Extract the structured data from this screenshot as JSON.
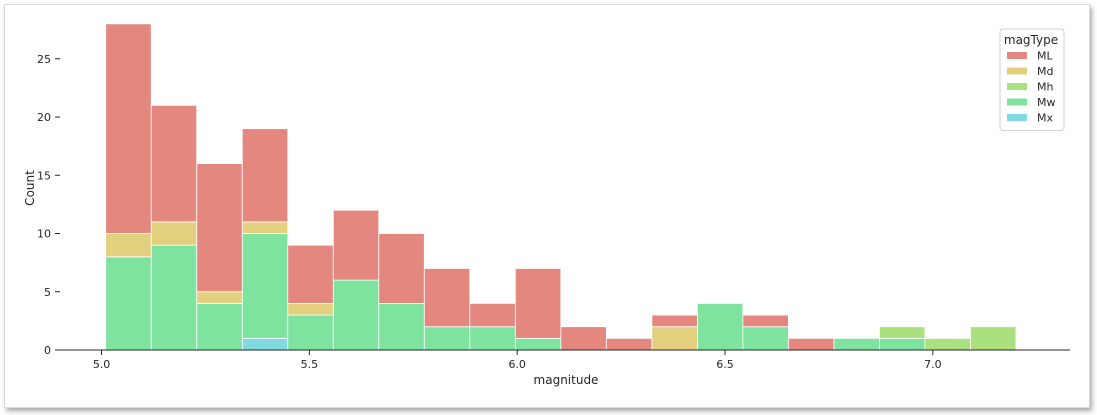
{
  "chart_data": {
    "type": "bar",
    "stacked": true,
    "xlabel": "magnitude",
    "ylabel": "Count",
    "xlim": [
      4.9,
      7.33
    ],
    "ylim": [
      0,
      28.5
    ],
    "xticks": [
      5.0,
      5.5,
      6.0,
      6.5,
      7.0
    ],
    "xtick_labels": [
      "5.0",
      "5.5",
      "6.0",
      "6.5",
      "7.0"
    ],
    "yticks": [
      0,
      5,
      10,
      15,
      20,
      25
    ],
    "ytick_labels": [
      "0",
      "5",
      "10",
      "15",
      "20",
      "25"
    ],
    "bin_start": 5.01,
    "bin_width": 0.1095,
    "bins": 20,
    "legend": {
      "title": "magType",
      "position": "top-right"
    },
    "series": [
      {
        "name": "Mx",
        "color": "#7fdbe0",
        "values": [
          0,
          0,
          0,
          1,
          0,
          0,
          0,
          0,
          0,
          0,
          0,
          0,
          0,
          0,
          0,
          0,
          0,
          0,
          0,
          0
        ]
      },
      {
        "name": "Mw",
        "color": "#7fe3a0",
        "values": [
          8,
          9,
          4,
          9,
          3,
          6,
          4,
          2,
          2,
          1,
          0,
          0,
          0,
          4,
          2,
          0,
          1,
          1,
          0,
          0
        ]
      },
      {
        "name": "Mh",
        "color": "#abe07f",
        "values": [
          0,
          0,
          0,
          0,
          0,
          0,
          0,
          0,
          0,
          0,
          0,
          0,
          0,
          0,
          0,
          0,
          0,
          1,
          1,
          2
        ]
      },
      {
        "name": "Md",
        "color": "#e3d07f",
        "values": [
          2,
          2,
          1,
          1,
          1,
          0,
          0,
          0,
          0,
          0,
          0,
          0,
          2,
          0,
          0,
          0,
          0,
          0,
          0,
          0
        ]
      },
      {
        "name": "ML",
        "color": "#e3877f",
        "values": [
          18,
          10,
          11,
          8,
          5,
          6,
          6,
          5,
          2,
          6,
          2,
          1,
          1,
          0,
          1,
          1,
          0,
          0,
          0,
          0
        ]
      }
    ],
    "legend_order": [
      "ML",
      "Md",
      "Mh",
      "Mw",
      "Mx"
    ]
  }
}
